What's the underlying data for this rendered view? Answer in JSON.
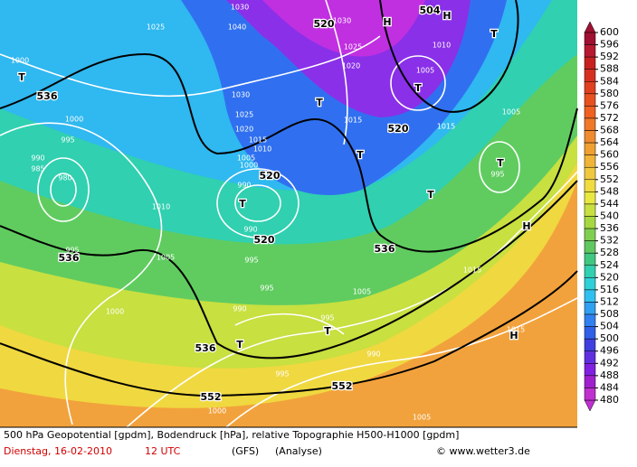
{
  "legend": {
    "values": [
      600,
      596,
      592,
      588,
      584,
      580,
      576,
      572,
      568,
      564,
      560,
      556,
      552,
      548,
      544,
      540,
      536,
      532,
      528,
      524,
      520,
      516,
      512,
      508,
      504,
      500,
      496,
      492,
      488,
      484,
      480
    ],
    "colors": [
      "#a01030",
      "#b81830",
      "#c82020",
      "#d83020",
      "#e04020",
      "#e85020",
      "#f06020",
      "#f07828",
      "#f08c30",
      "#f0a030",
      "#f0b438",
      "#f0c840",
      "#f0dc40",
      "#e8e840",
      "#c8e040",
      "#a8d840",
      "#80d050",
      "#60c860",
      "#40c880",
      "#30d0b0",
      "#30d0d8",
      "#30c0f0",
      "#30a0f0",
      "#3080f0",
      "#3060e8",
      "#4040e0",
      "#6030e0",
      "#8020e0",
      "#a020d0",
      "#c030d0"
    ]
  },
  "map_labels": [
    "1025",
    "1030",
    "1040",
    "520",
    "1030",
    "H",
    "504",
    "H",
    "T",
    "1000",
    "T",
    "536",
    "1025",
    "1020",
    "1010",
    "1005",
    "T",
    "1030",
    "T",
    "1025",
    "1015",
    "520",
    "1015",
    "1005",
    "1000",
    "1020",
    "1015",
    "995",
    "1010",
    "T",
    "1005",
    "990",
    "985",
    "980",
    "1000",
    "520",
    "995",
    "T",
    "990",
    "T",
    "1010",
    "T",
    "H",
    "990",
    "520",
    "995",
    "536",
    "536",
    "1005",
    "995",
    "1015",
    "995",
    "1005",
    "990",
    "995",
    "T",
    "1000",
    "1015",
    "H",
    "T",
    "536",
    "990",
    "995",
    "552",
    "552",
    "1000",
    "1005"
  ],
  "footer": {
    "line1": "500 hPa Geopotential [gpdm], Bodendruck [hPa], relative Topographie H500-H1000 [gpdm]",
    "date": "Dienstag, 16-02-2010",
    "time": "12 UTC",
    "model": "(GFS)",
    "run": "(Analyse)",
    "credit": "© www.wetter3.de"
  }
}
